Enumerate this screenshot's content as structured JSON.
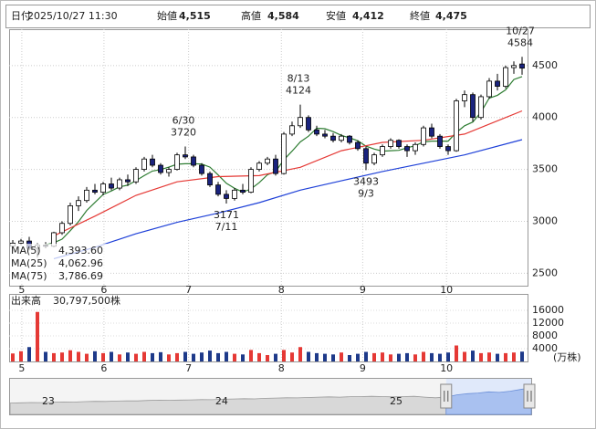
{
  "header": {
    "fields": [
      {
        "label": "日付",
        "value": "2025/10/27 11:30",
        "color": "#000000"
      },
      {
        "label": "始値",
        "value": "4,515",
        "color": "#000000"
      },
      {
        "label": "高値",
        "value": "4,584",
        "color": "#e00000"
      },
      {
        "label": "安値",
        "value": "4,412",
        "color": "#008000"
      },
      {
        "label": "終値",
        "value": "4,475",
        "color": "#000000"
      }
    ]
  },
  "chart_data": {
    "type": "candlestick",
    "ylim": [
      2380,
      4850
    ],
    "yticks": [
      2500,
      3000,
      3500,
      4000,
      4500
    ],
    "grid": true,
    "up_color": "#ffffff",
    "down_color": "#1a237e",
    "edge_color": "#000000",
    "xticks": [
      {
        "value": 1.1,
        "label": "5"
      },
      {
        "value": 11.1,
        "label": "6"
      },
      {
        "value": 21.4,
        "label": "7"
      },
      {
        "value": 32.7,
        "label": "8"
      },
      {
        "value": 42.6,
        "label": "9"
      },
      {
        "value": 52.8,
        "label": "10"
      }
    ],
    "candles": [
      [
        2760,
        2820,
        2740,
        2790
      ],
      [
        2790,
        2830,
        2770,
        2810
      ],
      [
        2810,
        2850,
        2720,
        2740
      ],
      [
        2740,
        2790,
        2650,
        2770
      ],
      [
        2770,
        2800,
        2740,
        2760
      ],
      [
        2760,
        2900,
        2750,
        2890
      ],
      [
        2890,
        3000,
        2870,
        2980
      ],
      [
        2980,
        3180,
        2960,
        3150
      ],
      [
        3150,
        3240,
        3100,
        3200
      ],
      [
        3200,
        3330,
        3180,
        3300
      ],
      [
        3300,
        3360,
        3260,
        3280
      ],
      [
        3280,
        3380,
        3250,
        3360
      ],
      [
        3360,
        3420,
        3300,
        3320
      ],
      [
        3320,
        3420,
        3300,
        3400
      ],
      [
        3400,
        3450,
        3340,
        3380
      ],
      [
        3380,
        3520,
        3360,
        3500
      ],
      [
        3500,
        3620,
        3480,
        3600
      ],
      [
        3600,
        3640,
        3520,
        3540
      ],
      [
        3540,
        3560,
        3450,
        3470
      ],
      [
        3470,
        3520,
        3430,
        3500
      ],
      [
        3500,
        3660,
        3490,
        3640
      ],
      [
        3640,
        3720,
        3600,
        3620
      ],
      [
        3620,
        3640,
        3520,
        3540
      ],
      [
        3540,
        3560,
        3440,
        3460
      ],
      [
        3460,
        3480,
        3330,
        3350
      ],
      [
        3350,
        3380,
        3240,
        3260
      ],
      [
        3260,
        3300,
        3171,
        3220
      ],
      [
        3220,
        3320,
        3200,
        3300
      ],
      [
        3300,
        3360,
        3260,
        3280
      ],
      [
        3280,
        3520,
        3270,
        3500
      ],
      [
        3500,
        3580,
        3480,
        3560
      ],
      [
        3560,
        3620,
        3540,
        3600
      ],
      [
        3600,
        3640,
        3440,
        3460
      ],
      [
        3460,
        3860,
        3450,
        3840
      ],
      [
        3840,
        3960,
        3820,
        3920
      ],
      [
        3920,
        4124,
        3900,
        4000
      ],
      [
        4000,
        4020,
        3860,
        3880
      ],
      [
        3880,
        3920,
        3820,
        3840
      ],
      [
        3840,
        3880,
        3800,
        3820
      ],
      [
        3820,
        3850,
        3760,
        3780
      ],
      [
        3780,
        3840,
        3760,
        3820
      ],
      [
        3820,
        3830,
        3740,
        3760
      ],
      [
        3760,
        3780,
        3680,
        3700
      ],
      [
        3700,
        3720,
        3493,
        3560
      ],
      [
        3560,
        3660,
        3540,
        3640
      ],
      [
        3640,
        3740,
        3620,
        3720
      ],
      [
        3720,
        3800,
        3700,
        3780
      ],
      [
        3780,
        3790,
        3700,
        3720
      ],
      [
        3720,
        3740,
        3620,
        3680
      ],
      [
        3680,
        3760,
        3640,
        3740
      ],
      [
        3740,
        3920,
        3720,
        3900
      ],
      [
        3900,
        3940,
        3800,
        3820
      ],
      [
        3820,
        3840,
        3700,
        3720
      ],
      [
        3720,
        3740,
        3640,
        3680
      ],
      [
        3680,
        4180,
        3670,
        4160
      ],
      [
        4160,
        4260,
        4100,
        4220
      ],
      [
        4220,
        4240,
        3960,
        4000
      ],
      [
        4000,
        4220,
        3980,
        4200
      ],
      [
        4200,
        4380,
        4180,
        4350
      ],
      [
        4350,
        4420,
        4260,
        4300
      ],
      [
        4300,
        4500,
        4280,
        4480
      ],
      [
        4480,
        4540,
        4420,
        4500
      ],
      [
        4515,
        4584,
        4412,
        4475
      ]
    ],
    "annotations": [
      {
        "date": "6/30",
        "value": 3720
      },
      {
        "date": "7/11",
        "value": 3171
      },
      {
        "date": "8/13",
        "value": 4124
      },
      {
        "date": "9/3",
        "value": 3493
      },
      {
        "date": "10/27",
        "value": 4584
      }
    ],
    "series": [
      {
        "name": "MA(5)",
        "color": "#2e7d32",
        "legend_label": "4,393.60",
        "values": [
          null,
          null,
          null,
          null,
          2774,
          2794,
          2828,
          2910,
          2996,
          3104,
          3182,
          3258,
          3292,
          3332,
          3348,
          3392,
          3440,
          3484,
          3498,
          3522,
          3550,
          3554,
          3554,
          3552,
          3522,
          3446,
          3366,
          3318,
          3282,
          3312,
          3372,
          3448,
          3480,
          3592,
          3676,
          3764,
          3820,
          3896,
          3892,
          3864,
          3828,
          3804,
          3776,
          3724,
          3696,
          3676,
          3680,
          3684,
          3708,
          3728,
          3764,
          3772,
          3772,
          3772,
          3856,
          3920,
          3956,
          4052,
          4186,
          4214,
          4266,
          4366,
          4393.6
        ]
      },
      {
        "name": "MA(25)",
        "color": "#e53935",
        "legend_label": "4,062.96",
        "x": [
          5,
          10,
          15,
          20,
          25,
          30,
          35,
          40,
          45,
          50,
          55,
          62
        ],
        "values": [
          2860,
          3050,
          3250,
          3380,
          3430,
          3440,
          3520,
          3680,
          3760,
          3780,
          3840,
          4062.96
        ]
      },
      {
        "name": "MA(75)",
        "color": "#1e40d8",
        "legend_label": "3,786.69",
        "x": [
          5,
          10,
          15,
          20,
          25,
          30,
          35,
          40,
          45,
          50,
          55,
          62
        ],
        "values": [
          2640,
          2750,
          2880,
          2990,
          3080,
          3180,
          3300,
          3390,
          3480,
          3560,
          3640,
          3786.69
        ]
      }
    ],
    "volume": {
      "label": "出来高",
      "current": "30,797,500株",
      "unit": "(万株)",
      "up_color": "#e53935",
      "down_color": "#1e3a8a",
      "ylim": [
        0,
        20000
      ],
      "yticks": [
        4000,
        8000,
        12000,
        16000
      ],
      "values": [
        2500,
        3200,
        4500,
        15500,
        3000,
        2600,
        2800,
        3500,
        3000,
        2400,
        3200,
        2600,
        3000,
        2200,
        2800,
        2400,
        3000,
        2600,
        2900,
        2200,
        2600,
        3000,
        2400,
        2800,
        3400,
        2600,
        3000,
        2400,
        2200,
        3600,
        2600,
        2000,
        2400,
        3600,
        2800,
        4500,
        3000,
        2600,
        2400,
        2200,
        2800,
        2000,
        2400,
        3000,
        2600,
        2800,
        2200,
        2400,
        2600,
        2200,
        3000,
        2600,
        2400,
        2800,
        5000,
        3000,
        3400,
        2600,
        2800,
        2400,
        2600,
        2800,
        3080
      ]
    },
    "navigator": {
      "ylim": [
        0,
        6000
      ],
      "selected_from": 41,
      "xticks": [
        {
          "value": 3.6,
          "label": "23"
        },
        {
          "value": 19.9,
          "label": "24"
        },
        {
          "value": 36.3,
          "label": "25"
        }
      ],
      "values": [
        1900,
        1950,
        2000,
        1980,
        2050,
        2100,
        2080,
        2150,
        2200,
        2180,
        2250,
        2300,
        2280,
        2350,
        2400,
        2380,
        2420,
        2450,
        2500,
        2480,
        2550,
        2600,
        2650,
        2620,
        2700,
        2750,
        2800,
        2780,
        2850,
        2900,
        2950,
        2900,
        2980,
        3000,
        3050,
        3000,
        2950,
        3000,
        3050,
        2900,
        2800,
        2900,
        3300,
        3500,
        3600,
        3800,
        3700,
        3900,
        4200,
        4500
      ]
    }
  }
}
